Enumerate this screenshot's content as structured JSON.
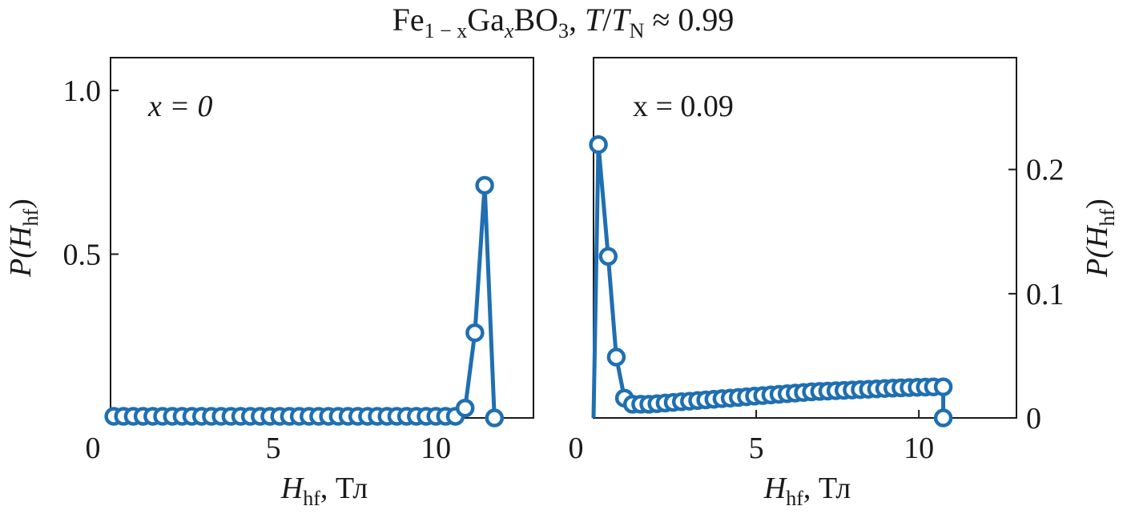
{
  "figure": {
    "title": {
      "base1": "Fe",
      "sub1": "1 − x",
      "base2": "Ga",
      "sub2": "x",
      "base3": "BO",
      "sub3": "3",
      "sep": ", ",
      "t1": "T",
      "slash": "/",
      "t2": "T",
      "subN": "N",
      "approx": " ≈ 0.99"
    },
    "series_color": "#1f6fb2",
    "x_axis_label": {
      "main": "H",
      "sub": "hf",
      "unit": ", Тл"
    },
    "y_axis_label": {
      "main": "P(H",
      "sub": "hf",
      "close": ")"
    }
  },
  "chart_data": [
    {
      "type": "line",
      "annotation": "x = 0",
      "xlim": [
        0,
        13
      ],
      "ylim": [
        0,
        1.1
      ],
      "xticks": [
        0,
        5,
        10
      ],
      "yticks": [
        0.5,
        1.0
      ],
      "ytick_labels": [
        "0.5",
        "1.0"
      ],
      "y_axis_side": "left",
      "series": [
        {
          "x": [
            0.1,
            0.4,
            0.7,
            1.0,
            1.3,
            1.6,
            1.9,
            2.2,
            2.5,
            2.8,
            3.1,
            3.4,
            3.7,
            4.0,
            4.3,
            4.6,
            4.9,
            5.2,
            5.5,
            5.8,
            6.1,
            6.4,
            6.7,
            7.0,
            7.3,
            7.6,
            7.9,
            8.2,
            8.5,
            8.8,
            9.1,
            9.4,
            9.7,
            10.0,
            10.3,
            10.6,
            10.9,
            11.2,
            11.5,
            11.8
          ],
          "y": [
            0.005,
            0.005,
            0.005,
            0.005,
            0.005,
            0.005,
            0.005,
            0.005,
            0.005,
            0.005,
            0.005,
            0.005,
            0.005,
            0.005,
            0.005,
            0.005,
            0.005,
            0.005,
            0.005,
            0.005,
            0.005,
            0.005,
            0.005,
            0.005,
            0.005,
            0.005,
            0.005,
            0.005,
            0.005,
            0.005,
            0.005,
            0.005,
            0.005,
            0.005,
            0.005,
            0.005,
            0.03,
            0.26,
            0.71,
            0.0
          ]
        }
      ]
    },
    {
      "type": "line",
      "annotation": "x = 0.09",
      "xlim": [
        0,
        13
      ],
      "ylim": [
        0,
        0.29
      ],
      "xticks": [
        0,
        5,
        10
      ],
      "yticks": [
        0,
        0.1,
        0.2
      ],
      "ytick_labels": [
        "0",
        "0.1",
        "0.2"
      ],
      "y_axis_side": "right",
      "series": [
        {
          "x": [
            0.0,
            0.15,
            0.45,
            0.7,
            0.95,
            1.2,
            1.45,
            1.7,
            1.95,
            2.2,
            2.45,
            2.7,
            2.95,
            3.2,
            3.45,
            3.7,
            3.95,
            4.2,
            4.45,
            4.7,
            4.95,
            5.2,
            5.45,
            5.7,
            5.95,
            6.2,
            6.45,
            6.7,
            6.95,
            7.2,
            7.45,
            7.7,
            7.95,
            8.2,
            8.45,
            8.7,
            8.95,
            9.2,
            9.45,
            9.7,
            9.95,
            10.2,
            10.45,
            10.75,
            10.75
          ],
          "y": [
            0.0,
            0.22,
            0.13,
            0.049,
            0.016,
            0.011,
            0.011,
            0.011,
            0.0115,
            0.012,
            0.0125,
            0.013,
            0.0135,
            0.014,
            0.0145,
            0.015,
            0.0155,
            0.016,
            0.0165,
            0.017,
            0.0175,
            0.018,
            0.0185,
            0.019,
            0.0195,
            0.02,
            0.0205,
            0.021,
            0.0213,
            0.0216,
            0.0219,
            0.0222,
            0.0225,
            0.0228,
            0.0231,
            0.0234,
            0.0237,
            0.024,
            0.0242,
            0.0244,
            0.0246,
            0.0248,
            0.025,
            0.025,
            0.0
          ],
          "markers": [
            false,
            true,
            true,
            true,
            true,
            true,
            true,
            true,
            true,
            true,
            true,
            true,
            true,
            true,
            true,
            true,
            true,
            true,
            true,
            true,
            true,
            true,
            true,
            true,
            true,
            true,
            true,
            true,
            true,
            true,
            true,
            true,
            true,
            true,
            true,
            true,
            true,
            true,
            true,
            true,
            true,
            true,
            true,
            true,
            true
          ]
        }
      ]
    }
  ]
}
